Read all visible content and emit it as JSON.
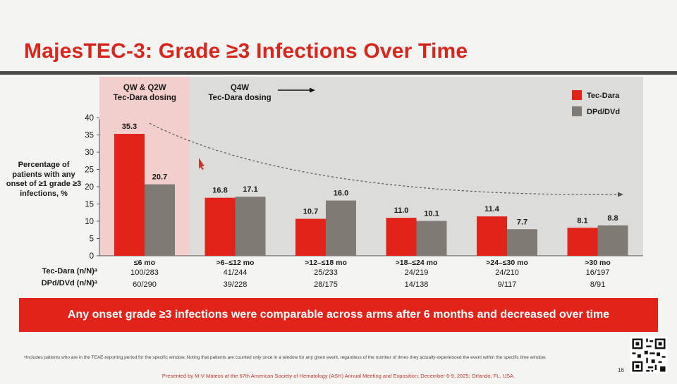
{
  "slide": {
    "title": "MajesTEC-3: Grade ≥3 Infections Over Time",
    "banner": "Any onset grade ≥3 infections were comparable across arms after 6 months and decreased over time",
    "footnote": "ᵃIncludes patients who are in the TEAE-reporting period for the specific window. Noting that patients are counted only once in a window for any given event, regardless of the number of times they actually experienced the event within the specific time window.",
    "presented_by": "Presented by M-V Mateos at the 67th American Society of Hematology (ASH) Annual Meeting and Exposition; December 6-9, 2025; Orlando, FL, USA.",
    "page_number": "16"
  },
  "colors": {
    "accent": "#e2231a",
    "tec_dara": "#e2231a",
    "dpd": "#7f7a74",
    "shade_early": "#f2cfcc",
    "shade_late": "#dcdcda"
  },
  "chart_data": {
    "type": "bar",
    "ylabel": "Percentage of patients with any onset of ≥1 grade ≥3 infections, %",
    "ylim": [
      0,
      40
    ],
    "yticks": [
      0,
      5,
      10,
      15,
      20,
      25,
      30,
      35,
      40
    ],
    "categories": [
      "≤6 mo",
      ">6–≤12 mo",
      ">12–≤18 mo",
      ">18–≤24 mo",
      ">24–≤30 mo",
      ">30 mo"
    ],
    "series": [
      {
        "name": "Tec-Dara",
        "values": [
          35.3,
          16.8,
          10.7,
          11.0,
          11.4,
          8.1
        ],
        "labels": [
          "35.3",
          "16.8",
          "10.7",
          "11.0",
          "11.4",
          "8.1"
        ]
      },
      {
        "name": "DPd/DVd",
        "values": [
          20.7,
          17.1,
          16.0,
          10.1,
          7.7,
          8.8
        ],
        "labels": [
          "20.7",
          "17.1",
          "16.0",
          "10.1",
          "7.7",
          "8.8"
        ]
      }
    ],
    "regions": [
      {
        "label": "QW & Q2W\nTec-Dara dosing",
        "categories": [
          "≤6 mo"
        ]
      },
      {
        "label": "Q4W\nTec-Dara dosing",
        "categories": [
          ">6–≤12 mo",
          ">12–≤18 mo",
          ">18–≤24 mo",
          ">24–≤30 mo",
          ">30 mo"
        ]
      }
    ],
    "legend_position": "top-right"
  },
  "table": {
    "rows": [
      {
        "label": "Tec-Dara (n/N)ᵃ",
        "values": [
          "100/283",
          "41/244",
          "25/233",
          "24/219",
          "24/210",
          "16/197"
        ]
      },
      {
        "label": "DPd/DVd (n/N)ᵃ",
        "values": [
          "60/290",
          "39/228",
          "28/175",
          "14/138",
          "9/117",
          "8/91"
        ]
      }
    ]
  }
}
